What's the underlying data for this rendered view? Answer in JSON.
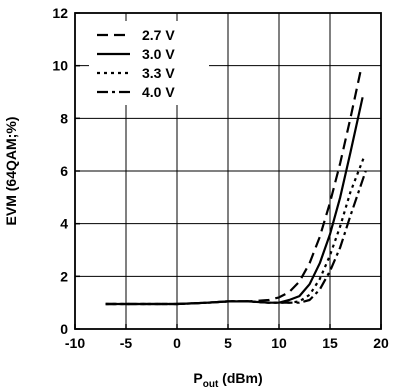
{
  "chart_data": {
    "type": "line",
    "title": "",
    "xlabel_main": "P",
    "xlabel_sub": "out",
    "xlabel_unit": " (dBm)",
    "ylabel": "EVM (64QAM;%)",
    "xlim": [
      -10,
      20
    ],
    "ylim": [
      0,
      12
    ],
    "x_ticks": [
      -10,
      -5,
      0,
      5,
      10,
      15,
      20
    ],
    "y_ticks": [
      0,
      2,
      4,
      6,
      8,
      10,
      12
    ],
    "grid": true,
    "legend_position": "top-left",
    "series": [
      {
        "name": "2.7 V",
        "dash": "dashed",
        "x": [
          -7,
          -5,
          0,
          3,
          5,
          7,
          9,
          10,
          11,
          12,
          13,
          14,
          15,
          16,
          17,
          18
        ],
        "y": [
          0.95,
          0.95,
          0.95,
          1.0,
          1.05,
          1.05,
          1.1,
          1.2,
          1.4,
          1.8,
          2.5,
          3.5,
          4.8,
          6.3,
          8.0,
          9.8
        ]
      },
      {
        "name": "3.0 V",
        "dash": "solid",
        "x": [
          -7,
          -5,
          0,
          3,
          5,
          7,
          9,
          10,
          11,
          12,
          13,
          14,
          15,
          16,
          17,
          18.2
        ],
        "y": [
          0.95,
          0.95,
          0.95,
          1.0,
          1.05,
          1.05,
          1.0,
          1.0,
          1.1,
          1.25,
          1.7,
          2.5,
          3.6,
          5.0,
          6.7,
          8.8
        ]
      },
      {
        "name": "3.3 V",
        "dash": "dotted",
        "x": [
          -7,
          -5,
          0,
          3,
          5,
          7,
          9,
          10,
          11,
          12,
          13,
          14,
          15,
          16,
          17,
          18.3
        ],
        "y": [
          0.95,
          0.95,
          0.95,
          1.0,
          1.05,
          1.05,
          1.0,
          1.0,
          1.0,
          1.05,
          1.3,
          1.9,
          2.8,
          3.9,
          5.2,
          6.5
        ]
      },
      {
        "name": "4.0 V",
        "dash": "dashdot",
        "x": [
          -7,
          -5,
          0,
          3,
          5,
          7,
          9,
          10,
          11,
          12,
          13,
          14,
          15,
          16,
          17,
          18.5
        ],
        "y": [
          0.95,
          0.95,
          0.95,
          1.0,
          1.05,
          1.05,
          1.0,
          1.0,
          1.0,
          1.0,
          1.1,
          1.5,
          2.2,
          3.1,
          4.3,
          6.0
        ]
      }
    ]
  }
}
